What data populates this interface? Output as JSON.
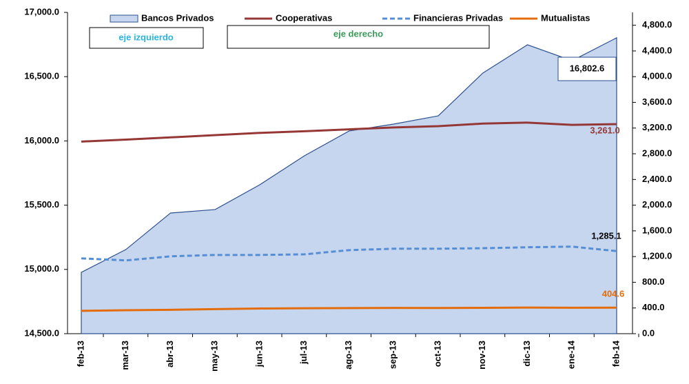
{
  "chart_data": {
    "type": "line",
    "categories": [
      "feb-13",
      "mar-13",
      "abr-13",
      "may-13",
      "jun-13",
      "jul-13",
      "ago-13",
      "sep-13",
      "oct-13",
      "nov-13",
      "dic-13",
      "ene-14",
      "feb-14"
    ],
    "series": [
      {
        "name": "Bancos Privados",
        "color": "#c6d6ef",
        "stroke": "#2c4f8c",
        "style": "area",
        "axis": "y",
        "values": [
          14977,
          15155,
          15439,
          15466,
          15659,
          15884,
          16077,
          16131,
          16195,
          16528,
          16748,
          16624,
          16802.6
        ],
        "value_labels": [
          null,
          null,
          null,
          null,
          null,
          null,
          null,
          null,
          null,
          null,
          null,
          null,
          "16,802.6"
        ]
      },
      {
        "name": "Cooperativas",
        "color": "#953735",
        "style": "solid",
        "axis": "y2",
        "values": [
          2990,
          3020,
          3055,
          3090,
          3125,
          3150,
          3180,
          3210,
          3230,
          3270,
          3285,
          3250,
          3261.0
        ],
        "value_labels": [
          null,
          null,
          null,
          null,
          null,
          null,
          null,
          null,
          null,
          null,
          null,
          null,
          "3,261.0"
        ]
      },
      {
        "name": "Financieras Privadas",
        "color": "#558ed5",
        "style": "dashed",
        "axis": "y2",
        "values": [
          1172,
          1140,
          1204,
          1225,
          1225,
          1235,
          1300,
          1322,
          1322,
          1330,
          1345,
          1355,
          1285.1
        ],
        "value_labels": [
          null,
          null,
          null,
          null,
          null,
          null,
          null,
          null,
          null,
          null,
          null,
          null,
          "1,285.1"
        ]
      },
      {
        "name": "Mutualistas",
        "color": "#e46c0a",
        "style": "solid",
        "axis": "y2",
        "values": [
          355,
          365,
          372,
          382,
          392,
          396,
          398,
          401,
          400,
          403,
          407,
          404,
          404.6
        ],
        "value_labels": [
          null,
          null,
          null,
          null,
          null,
          null,
          null,
          null,
          null,
          null,
          null,
          null,
          "404.6"
        ]
      }
    ],
    "ylim": [
      14500,
      17000
    ],
    "yticks": [
      {
        "value": 14500,
        "label": "14,500.0"
      },
      {
        "value": 15000,
        "label": "15,000.0"
      },
      {
        "value": 15500,
        "label": "15,500.0"
      },
      {
        "value": 16000,
        "label": "16,000.0"
      },
      {
        "value": 16500,
        "label": "16,500.0"
      },
      {
        "value": 17000,
        "label": "17,000.0"
      }
    ],
    "y2lim": [
      0,
      5000
    ],
    "y2ticks": [
      {
        "value": 0,
        "label": "0.0"
      },
      {
        "value": 400,
        "label": "400.0"
      },
      {
        "value": 800,
        "label": "800.0"
      },
      {
        "value": 1200,
        "label": "1,200.0"
      },
      {
        "value": 1600,
        "label": "1,600.0"
      },
      {
        "value": 2000,
        "label": "2,000.0"
      },
      {
        "value": 2400,
        "label": "2,400.0"
      },
      {
        "value": 2800,
        "label": "2,800.0"
      },
      {
        "value": 3200,
        "label": "3,200.0"
      },
      {
        "value": 3600,
        "label": "3,600.0"
      },
      {
        "value": 4000,
        "label": "4,000.0"
      },
      {
        "value": 4400,
        "label": "4,400.0"
      },
      {
        "value": 4800,
        "label": "4,800.0"
      }
    ],
    "annotations": [
      "eje izquierdo",
      "eje derecho"
    ]
  }
}
